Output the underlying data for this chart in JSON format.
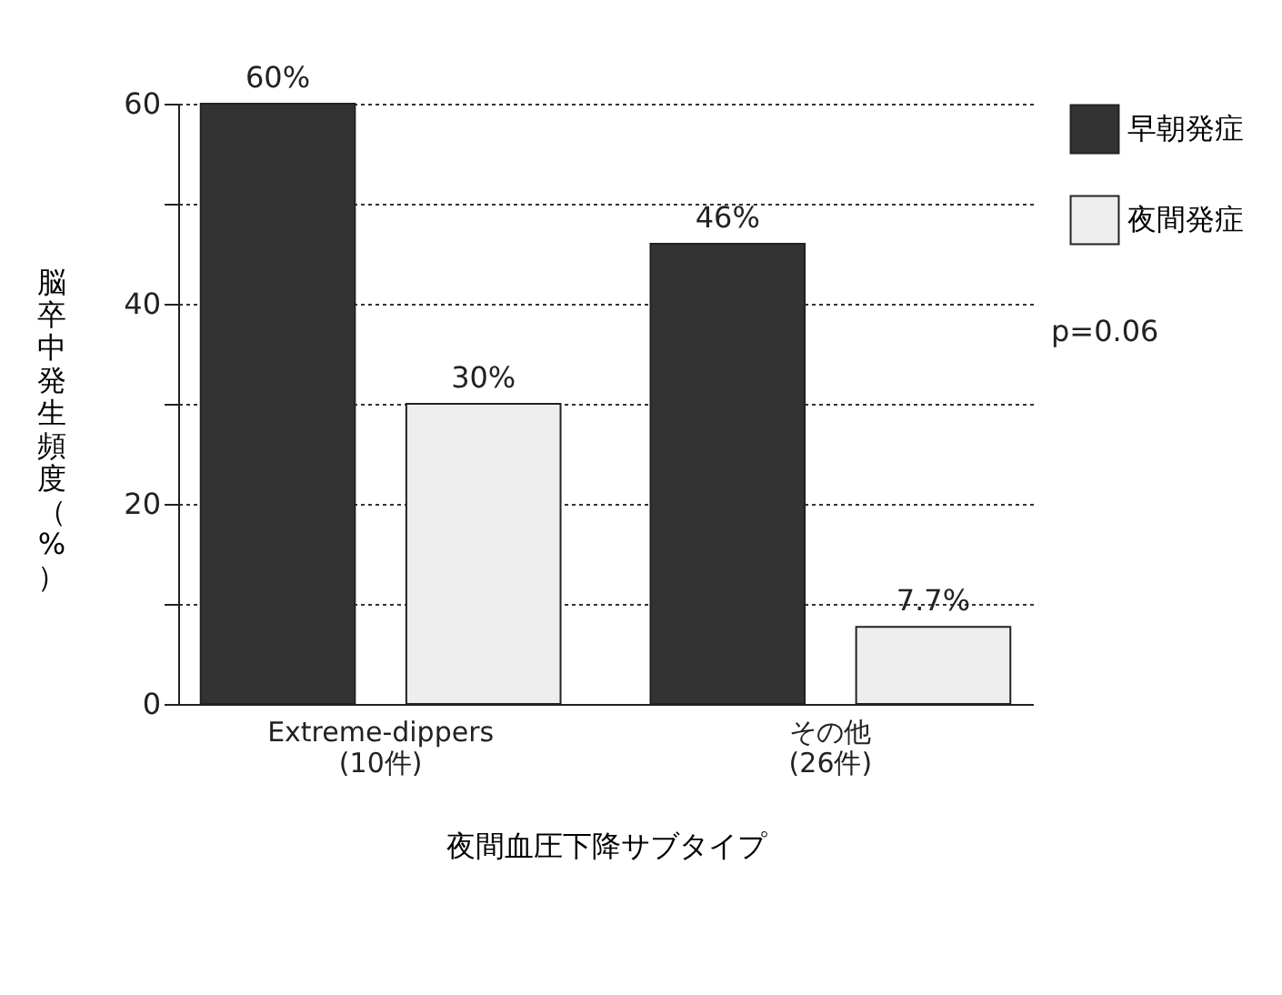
{
  "chart_data": {
    "type": "bar",
    "ylabel": "脳卒中発生頻度（%）",
    "xlabel": "夜間血圧下降サブタイプ",
    "categories": [
      "Extreme-dippers\n(10件)",
      "その他\n(26件)"
    ],
    "series": [
      {
        "name": "早朝発症",
        "color": "#333333",
        "values": [
          60,
          46
        ],
        "value_labels": [
          "60%",
          "46%"
        ]
      },
      {
        "name": "夜間発症",
        "color": "#eeeeee",
        "values": [
          30,
          7.7
        ],
        "value_labels": [
          "30%",
          "7.7%"
        ]
      }
    ],
    "ylim": [
      0,
      60
    ],
    "yticks": [
      0,
      {
        "value": 10,
        "label": null
      },
      20,
      {
        "value": 30,
        "label": null
      },
      40,
      {
        "value": 50,
        "label": null
      },
      60
    ],
    "grid": "y",
    "legend": "top right",
    "annotations": [
      "p=0.06"
    ]
  }
}
